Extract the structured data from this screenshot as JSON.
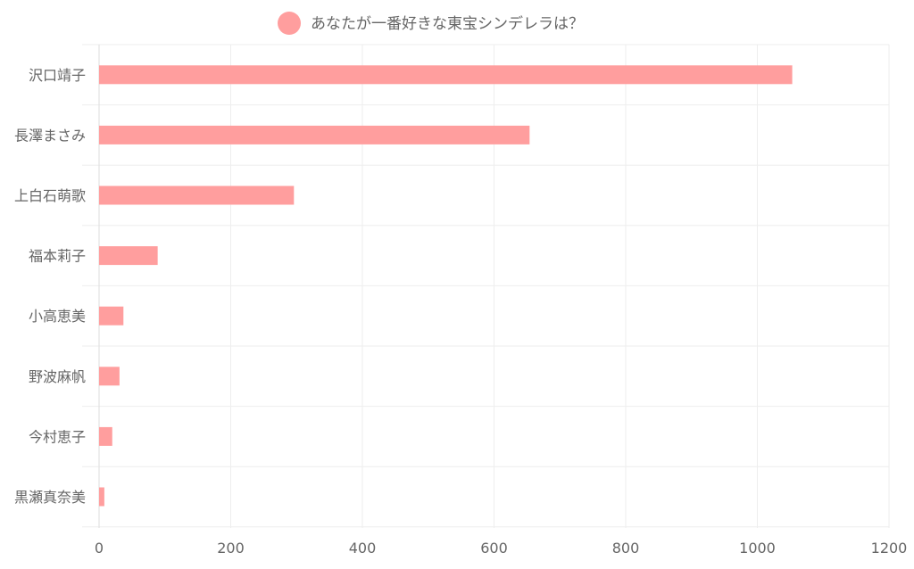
{
  "chart_data": {
    "type": "bar",
    "orientation": "horizontal",
    "categories": [
      "沢口靖子",
      "長澤まさみ",
      "上白石萌歌",
      "福本莉子",
      "小高恵美",
      "野波麻帆",
      "今村恵子",
      "黒瀬真奈美"
    ],
    "series": [
      {
        "name": "あなたが一番好きな東宝シンデレラは？",
        "values": [
          1053,
          654,
          296,
          89,
          37,
          31,
          20,
          8
        ]
      }
    ],
    "xlim": [
      0,
      1200
    ],
    "xticks": [
      0,
      200,
      400,
      600,
      800,
      1000,
      1200
    ],
    "grid": true,
    "legend_position": "top",
    "colors": {
      "bar": "#ff9e9e",
      "grid": "#eeeeee",
      "text": "#666666"
    }
  }
}
